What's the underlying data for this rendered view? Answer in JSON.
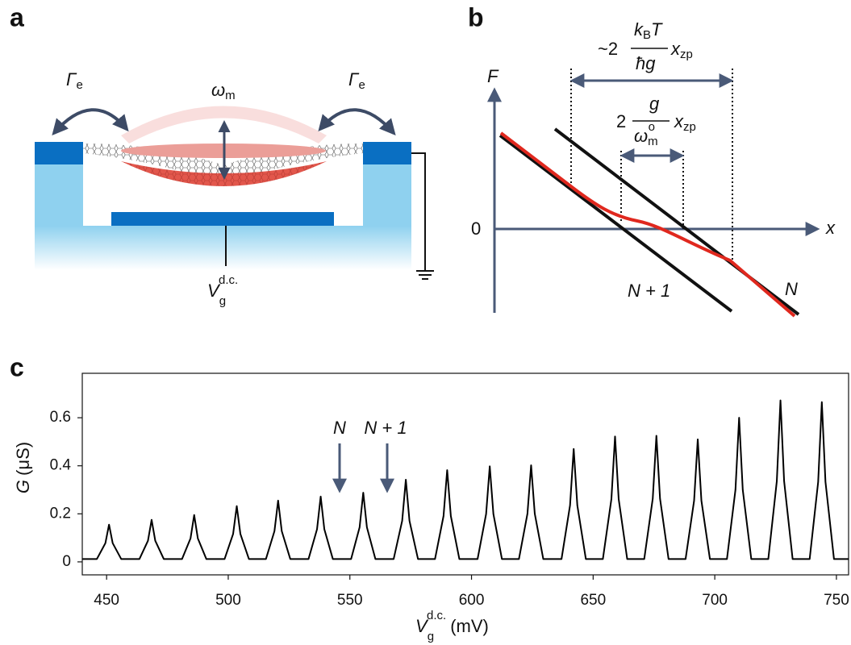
{
  "panel_a": {
    "label": "a",
    "gamma_left": {
      "symbol": "Γ",
      "sub": "e"
    },
    "gamma_right": {
      "symbol": "Γ",
      "sub": "e"
    },
    "omega": {
      "symbol": "ω",
      "sub": "m"
    },
    "gate_voltage": {
      "symbol": "V",
      "sub": "g",
      "sup": "d.c."
    }
  },
  "panel_b": {
    "label": "b",
    "y_axis": "F",
    "x_axis": "x",
    "origin": "0",
    "line_n": "N",
    "line_n1": "N + 1",
    "thermal_width": {
      "prefix": "~2",
      "num_k": "k",
      "num_sub": "B",
      "num_t": "T",
      "den": "ħg",
      "x": "x",
      "x_sub": "zp"
    },
    "quantum_width": {
      "prefix": "2",
      "num": "g",
      "den": "ω",
      "den_sub": "m",
      "den_sup": "o",
      "x": "x",
      "x_sub": "zp"
    }
  },
  "panel_c": {
    "label": "c"
  },
  "chart_data": {
    "type": "line",
    "xlabel": {
      "symbol": "V",
      "sub": "g",
      "sup": "d.c.",
      "unit": "(mV)"
    },
    "ylabel": {
      "symbol": "G",
      "unit": "(μS)"
    },
    "annotations": [
      "N",
      "N + 1"
    ],
    "color": "#000000",
    "xlim": [
      440,
      755
    ],
    "ylim": [
      -0.054,
      0.785
    ],
    "xticks": [
      450,
      500,
      550,
      600,
      650,
      700,
      750
    ],
    "yticks": [
      0,
      0.2,
      0.4,
      0.6
    ],
    "x": [
      440,
      446,
      449.5,
      451,
      452.5,
      456,
      463.5,
      467,
      468.5,
      470,
      473.5,
      481,
      484.5,
      486,
      487.5,
      491,
      498.5,
      502,
      503.5,
      505,
      508.5,
      515.5,
      519,
      520.5,
      522,
      525.5,
      533,
      536.5,
      538,
      539.5,
      543,
      550.5,
      554,
      555.5,
      557,
      560.5,
      568,
      571.5,
      573,
      574.5,
      578,
      585,
      588.5,
      590,
      591.5,
      595,
      602.5,
      606,
      607.5,
      609,
      612.5,
      619.5,
      623,
      624.5,
      626,
      629.5,
      637,
      640.5,
      642,
      643.5,
      647,
      654,
      657.5,
      659,
      660.5,
      664,
      671,
      674.5,
      676,
      677.5,
      681,
      688,
      691.5,
      693,
      694.5,
      698,
      705,
      708.5,
      710,
      711.5,
      715,
      722,
      725.5,
      727,
      728.5,
      732,
      739,
      742.5,
      744,
      745.5,
      749,
      755
    ],
    "values": [
      0.012,
      0.012,
      0.078,
      0.155,
      0.078,
      0.012,
      0.012,
      0.088,
      0.175,
      0.088,
      0.012,
      0.012,
      0.098,
      0.195,
      0.098,
      0.012,
      0.012,
      0.116,
      0.232,
      0.116,
      0.012,
      0.012,
      0.128,
      0.255,
      0.128,
      0.012,
      0.012,
      0.136,
      0.272,
      0.136,
      0.012,
      0.012,
      0.144,
      0.288,
      0.144,
      0.012,
      0.012,
      0.171,
      0.342,
      0.171,
      0.012,
      0.012,
      0.191,
      0.382,
      0.191,
      0.012,
      0.012,
      0.199,
      0.398,
      0.199,
      0.012,
      0.012,
      0.201,
      0.402,
      0.201,
      0.012,
      0.012,
      0.235,
      0.47,
      0.235,
      0.012,
      0.012,
      0.261,
      0.522,
      0.261,
      0.012,
      0.012,
      0.263,
      0.525,
      0.263,
      0.012,
      0.012,
      0.255,
      0.51,
      0.255,
      0.012,
      0.012,
      0.3,
      0.6,
      0.3,
      0.012,
      0.012,
      0.336,
      0.672,
      0.336,
      0.012,
      0.012,
      0.333,
      0.665,
      0.333,
      0.012,
      0.012
    ]
  }
}
